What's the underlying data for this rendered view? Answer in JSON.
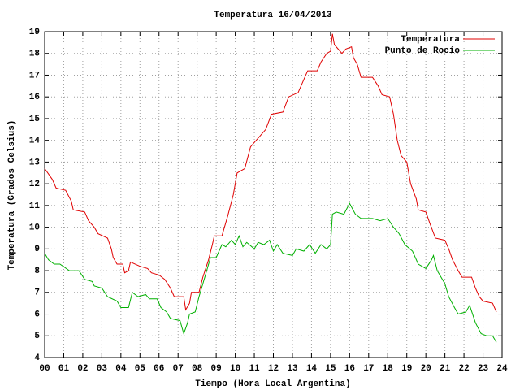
{
  "chart_data": {
    "type": "line",
    "title": "Temperatura 16/04/2013",
    "x_label": "Tiempo (Hora Local Argentina)",
    "y_label": "Temperatura (Grados Celsius)",
    "xlim": [
      0,
      24
    ],
    "xticks": [
      {
        "value": 0,
        "label": "00"
      },
      {
        "value": 1,
        "label": "01"
      },
      {
        "value": 2,
        "label": "02"
      },
      {
        "value": 3,
        "label": "03"
      },
      {
        "value": 4,
        "label": "04"
      },
      {
        "value": 5,
        "label": "05"
      },
      {
        "value": 6,
        "label": "06"
      },
      {
        "value": 7,
        "label": "07"
      },
      {
        "value": 8,
        "label": "08"
      },
      {
        "value": 9,
        "label": "09"
      },
      10,
      11,
      12,
      13,
      14,
      15,
      16,
      17,
      18,
      19,
      20,
      21,
      22,
      23,
      24
    ],
    "ylim": [
      4,
      19
    ],
    "yticks": [
      4,
      5,
      6,
      7,
      8,
      9,
      10,
      11,
      12,
      13,
      14,
      15,
      16,
      17,
      18,
      19
    ],
    "grid": true,
    "legend": "top-right",
    "series": [
      {
        "name": "Temperatura",
        "color": "#e00000",
        "x": [
          0,
          0.4,
          0.6,
          1.1,
          1.4,
          1.5,
          2.1,
          2.3,
          2.6,
          2.8,
          3.3,
          3.5,
          3.6,
          3.8,
          4.1,
          4.2,
          4.4,
          4.5,
          5.0,
          5.4,
          5.6,
          6.0,
          6.3,
          6.6,
          6.8,
          7.3,
          7.4,
          7.6,
          7.7,
          8.1,
          8.3,
          8.6,
          8.8,
          8.9,
          9.3,
          9.6,
          9.9,
          10.1,
          10.5,
          10.8,
          11.0,
          11.3,
          11.6,
          11.9,
          12.5,
          12.8,
          13.3,
          13.6,
          13.8,
          14.3,
          14.5,
          14.8,
          15.0,
          15.1,
          15.2,
          15.6,
          15.8,
          16.1,
          16.2,
          16.4,
          16.6,
          17.2,
          17.5,
          17.7,
          18.1,
          18.3,
          18.5,
          18.7,
          19.0,
          19.2,
          19.5,
          19.6,
          20.0,
          20.2,
          20.5,
          21.0,
          21.2,
          21.4,
          21.7,
          21.9,
          22.4,
          22.6,
          22.8,
          23.0,
          23.5,
          23.7
        ],
        "values": [
          12.7,
          12.2,
          11.8,
          11.7,
          11.2,
          10.8,
          10.7,
          10.3,
          10.0,
          9.7,
          9.5,
          9.0,
          8.6,
          8.3,
          8.3,
          7.9,
          8.0,
          8.4,
          8.2,
          8.1,
          7.9,
          7.8,
          7.6,
          7.2,
          6.8,
          6.8,
          6.2,
          6.5,
          7.0,
          7.0,
          7.7,
          8.5,
          9.2,
          9.6,
          9.6,
          10.5,
          11.5,
          12.5,
          12.7,
          13.7,
          13.9,
          14.2,
          14.5,
          15.2,
          15.3,
          16.0,
          16.2,
          16.8,
          17.2,
          17.2,
          17.6,
          18.0,
          18.1,
          18.9,
          18.4,
          18.0,
          18.2,
          18.3,
          17.8,
          17.5,
          16.9,
          16.9,
          16.5,
          16.1,
          16.0,
          15.2,
          14.0,
          13.3,
          13.0,
          12.0,
          11.3,
          10.8,
          10.7,
          10.2,
          9.5,
          9.4,
          9.0,
          8.5,
          8.0,
          7.7,
          7.7,
          7.2,
          6.8,
          6.6,
          6.5,
          6.1
        ]
      },
      {
        "name": "Punto de Rocío",
        "color": "#00b000",
        "x": [
          0,
          0.2,
          0.5,
          0.8,
          1.3,
          1.8,
          2.1,
          2.5,
          2.6,
          3.0,
          3.3,
          3.8,
          4.0,
          4.4,
          4.6,
          4.9,
          5.3,
          5.5,
          5.9,
          6.1,
          6.4,
          6.6,
          7.1,
          7.3,
          7.5,
          7.6,
          7.9,
          8.1,
          8.4,
          8.7,
          9.0,
          9.3,
          9.5,
          9.8,
          10.0,
          10.2,
          10.4,
          10.6,
          11.0,
          11.2,
          11.5,
          11.8,
          12.0,
          12.2,
          12.5,
          13.0,
          13.2,
          13.6,
          13.9,
          14.2,
          14.5,
          14.8,
          15.0,
          15.1,
          15.3,
          15.7,
          16.0,
          16.3,
          16.6,
          17.2,
          17.6,
          18.0,
          18.3,
          18.6,
          18.9,
          19.3,
          19.6,
          20.0,
          20.3,
          20.4,
          20.6,
          21.0,
          21.2,
          21.5,
          21.7,
          22.1,
          22.3,
          22.6,
          22.9,
          23.2,
          23.5,
          23.7
        ],
        "values": [
          8.8,
          8.5,
          8.3,
          8.3,
          8.0,
          8.0,
          7.6,
          7.5,
          7.3,
          7.2,
          6.8,
          6.6,
          6.3,
          6.3,
          7.0,
          6.8,
          6.9,
          6.7,
          6.7,
          6.3,
          6.1,
          5.8,
          5.7,
          5.1,
          5.6,
          6.0,
          6.1,
          6.8,
          7.7,
          8.6,
          8.6,
          9.2,
          9.1,
          9.4,
          9.2,
          9.6,
          9.1,
          9.3,
          9.0,
          9.3,
          9.2,
          9.4,
          8.9,
          9.2,
          8.8,
          8.7,
          9.0,
          8.9,
          9.2,
          8.8,
          9.2,
          9.0,
          9.2,
          10.6,
          10.7,
          10.6,
          11.1,
          10.6,
          10.4,
          10.4,
          10.3,
          10.4,
          10.0,
          9.7,
          9.2,
          8.9,
          8.3,
          8.1,
          8.5,
          8.7,
          8.0,
          7.4,
          6.8,
          6.3,
          6.0,
          6.1,
          6.4,
          5.6,
          5.1,
          5.0,
          5.0,
          4.7
        ]
      }
    ]
  }
}
